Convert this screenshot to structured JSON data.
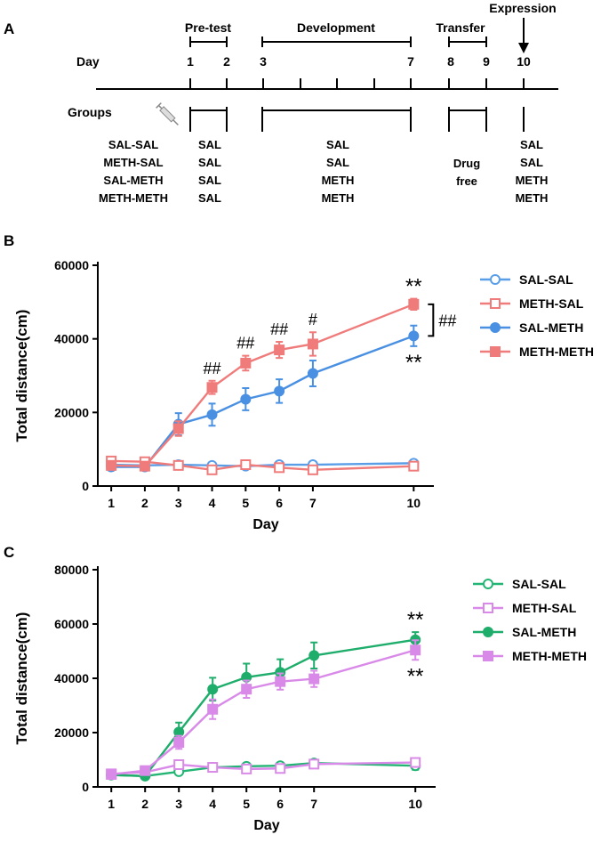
{
  "panel_a": {
    "label": "A",
    "phases": [
      {
        "name": "Pre-test",
        "from_day": 1,
        "to_day": 2
      },
      {
        "name": "Development",
        "from_day": 3,
        "to_day": 7
      },
      {
        "name": "Transfer",
        "from_day": 8,
        "to_day": 9
      },
      {
        "name": "Expression",
        "from_day": 10,
        "to_day": 10
      }
    ],
    "day_label": "Day",
    "day_numbers": [
      "1",
      "2",
      "3",
      "7",
      "8",
      "9",
      "10"
    ],
    "groups_label": "Groups",
    "group_names": [
      "SAL-SAL",
      "METH-SAL",
      "SAL-METH",
      "METH-METH"
    ],
    "pretest_treatment": [
      "SAL",
      "SAL",
      "SAL",
      "SAL"
    ],
    "development_treatment": [
      "SAL",
      "SAL",
      "METH",
      "METH"
    ],
    "transfer_treatment": [
      "Drug",
      "free"
    ],
    "expression_treatment": [
      "SAL",
      "SAL",
      "METH",
      "METH"
    ]
  },
  "chart_data": [
    {
      "panel": "B",
      "type": "line",
      "xlabel": "Day",
      "ylabel": "Total distance(cm)",
      "x": [
        1,
        2,
        3,
        4,
        5,
        6,
        7,
        10
      ],
      "x_ticks": [
        "1",
        "2",
        "3",
        "4",
        "5",
        "6",
        "7",
        "10"
      ],
      "xlim": [
        0.6,
        10.6
      ],
      "ylim": [
        0,
        60000
      ],
      "y_ticks": [
        "0",
        "20000",
        "40000",
        "60000"
      ],
      "legend_position": "right",
      "series": [
        {
          "name": "SAL-SAL",
          "color": "#5b9ee8",
          "marker": "circle-open",
          "values": [
            5800,
            5600,
            5800,
            5600,
            5400,
            5800,
            5800,
            6200
          ],
          "errors": [
            800,
            600,
            500,
            500,
            500,
            500,
            500,
            600
          ]
        },
        {
          "name": "METH-SAL",
          "color": "#f07b7b",
          "marker": "square-open",
          "values": [
            6800,
            6600,
            5600,
            4400,
            5800,
            5000,
            4400,
            5400
          ],
          "errors": [
            800,
            600,
            600,
            500,
            600,
            600,
            500,
            600
          ]
        },
        {
          "name": "SAL-METH",
          "color": "#4a90e2",
          "marker": "circle-filled",
          "values": [
            5200,
            5200,
            16800,
            19400,
            23600,
            25800,
            30600,
            40800
          ],
          "errors": [
            900,
            500,
            3000,
            3000,
            3000,
            3200,
            3500,
            2800
          ]
        },
        {
          "name": "METH-METH",
          "color": "#f07b7b",
          "marker": "square-filled",
          "values": [
            5600,
            5400,
            15600,
            26800,
            33400,
            37000,
            38600,
            49400
          ],
          "errors": [
            800,
            600,
            2000,
            1800,
            2000,
            2200,
            3200,
            1500
          ]
        }
      ],
      "annotations": [
        {
          "text": "##",
          "x": 4
        },
        {
          "text": "##",
          "x": 5
        },
        {
          "text": "##",
          "x": 6
        },
        {
          "text": "#",
          "x": 7
        },
        {
          "text": "**",
          "x": 10,
          "series": "METH-METH"
        },
        {
          "text": "**",
          "x": 10,
          "series": "SAL-METH"
        },
        {
          "text": "##",
          "bracket": [
            "METH-METH",
            "SAL-METH"
          ]
        }
      ]
    },
    {
      "panel": "C",
      "type": "line",
      "xlabel": "Day",
      "ylabel": "Total distance(cm)",
      "x": [
        1,
        2,
        3,
        4,
        5,
        6,
        7,
        10
      ],
      "x_ticks": [
        "1",
        "2",
        "3",
        "4",
        "5",
        "6",
        "7",
        "10"
      ],
      "xlim": [
        0.6,
        10.6
      ],
      "ylim": [
        0,
        80000
      ],
      "y_ticks": [
        "0",
        "20000",
        "40000",
        "60000",
        "80000"
      ],
      "legend_position": "right",
      "series": [
        {
          "name": "SAL-SAL",
          "color": "#22b573",
          "marker": "circle-open",
          "values": [
            4400,
            4000,
            5600,
            7200,
            7600,
            7800,
            8800,
            7800
          ],
          "errors": [
            800,
            600,
            800,
            1000,
            1000,
            1000,
            1200,
            1500
          ]
        },
        {
          "name": "METH-SAL",
          "color": "#d98ae8",
          "marker": "square-open",
          "values": [
            4800,
            5400,
            8200,
            7200,
            6600,
            6800,
            8400,
            9000
          ],
          "errors": [
            900,
            800,
            1200,
            1000,
            1000,
            1000,
            1200,
            1500
          ]
        },
        {
          "name": "SAL-METH",
          "color": "#1fad6b",
          "marker": "circle-filled",
          "values": [
            4400,
            4000,
            20200,
            36000,
            40400,
            42200,
            48400,
            54200
          ],
          "errors": [
            700,
            500,
            3500,
            4200,
            5000,
            4800,
            4800,
            2800
          ]
        },
        {
          "name": "METH-METH",
          "color": "#d98ae8",
          "marker": "square-filled",
          "values": [
            4600,
            6000,
            16400,
            28600,
            36000,
            38800,
            39800,
            50400
          ],
          "errors": [
            700,
            800,
            2400,
            3600,
            3200,
            3000,
            3000,
            3600
          ]
        }
      ],
      "annotations": [
        {
          "text": "**",
          "x": 10,
          "series": "SAL-METH"
        },
        {
          "text": "**",
          "x": 10,
          "series": "METH-METH"
        }
      ]
    }
  ]
}
